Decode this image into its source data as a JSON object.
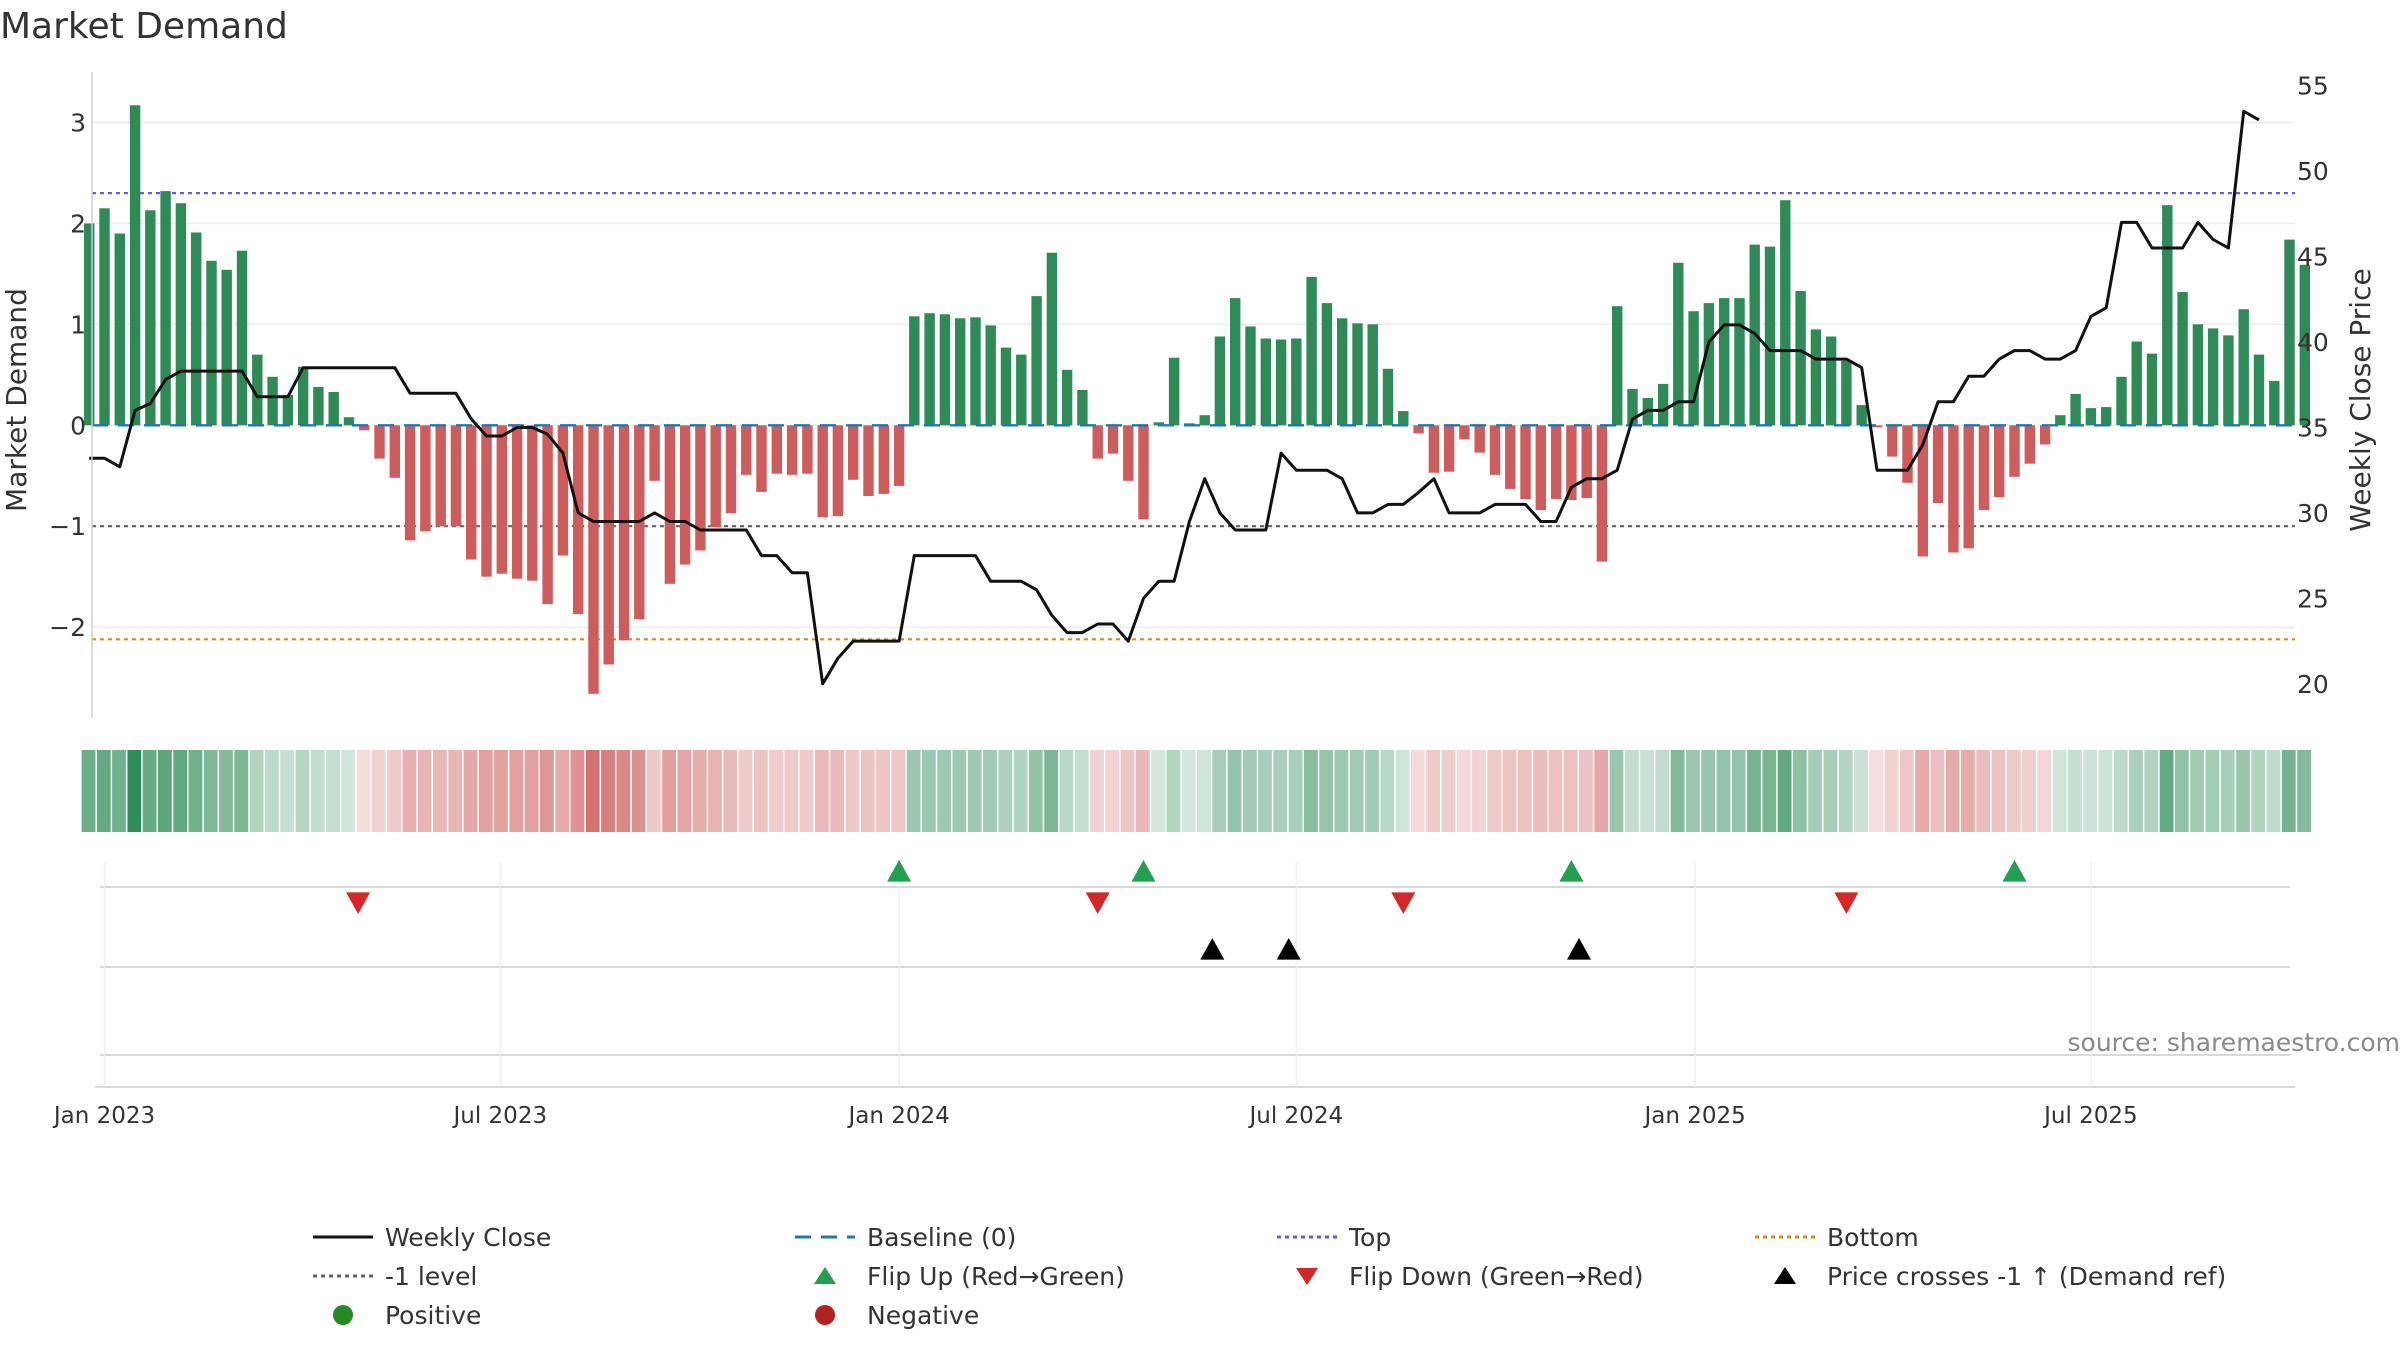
{
  "chart_data": {
    "type": "bar",
    "title": "Market Demand",
    "ylabel": "Market Demand",
    "y2label": "Weekly Close Price",
    "ylim": [
      -2.9,
      3.5
    ],
    "y2lim": [
      18.0,
      55.8
    ],
    "yticks": [
      3,
      2,
      1,
      0,
      -1,
      -2
    ],
    "yticklabels": [
      "3",
      "2",
      "1",
      "0",
      "−1",
      "−2"
    ],
    "y2ticks": [
      55,
      50,
      45,
      40,
      35,
      30,
      25,
      20
    ],
    "y2ticklabels": [
      "55",
      "50",
      "45",
      "40",
      "35",
      "30",
      "25",
      "20"
    ],
    "x_start": "2022-12-25",
    "xlim": [
      -2,
      146
    ],
    "xticks": [
      {
        "week": 1.0,
        "label": "Jan 2023"
      },
      {
        "week": 26.9,
        "label": "Jul 2023"
      },
      {
        "week": 53.0,
        "label": "Jan 2024"
      },
      {
        "week": 79.0,
        "label": "Jul 2024"
      },
      {
        "week": 105.1,
        "label": "Jan 2025"
      },
      {
        "week": 131.0,
        "label": "Jul 2025"
      }
    ],
    "levels": {
      "baseline": 0,
      "top": 2.3,
      "minus_one": -1,
      "bottom": -2.12
    },
    "demand": [
      2.0,
      2.15,
      1.9,
      3.17,
      2.13,
      2.32,
      2.2,
      1.91,
      1.63,
      1.54,
      1.73,
      0.7,
      0.48,
      0.3,
      0.58,
      0.38,
      0.33,
      0.08,
      -0.05,
      -0.33,
      -0.52,
      -1.14,
      -1.05,
      -1.0,
      -1.0,
      -1.33,
      -1.5,
      -1.47,
      -1.52,
      -1.54,
      -1.77,
      -1.29,
      -1.87,
      -2.66,
      -2.37,
      -2.13,
      -1.92,
      -0.55,
      -1.57,
      -1.38,
      -1.24,
      -1.01,
      -0.87,
      -0.49,
      -0.66,
      -0.48,
      -0.49,
      -0.48,
      -0.91,
      -0.9,
      -0.54,
      -0.7,
      -0.68,
      -0.6,
      1.08,
      1.11,
      1.1,
      1.06,
      1.07,
      0.99,
      0.77,
      0.7,
      1.28,
      1.71,
      0.55,
      0.35,
      -0.33,
      -0.28,
      -0.55,
      -0.93,
      0.03,
      0.67,
      0.02,
      0.1,
      0.88,
      1.26,
      0.98,
      0.86,
      0.85,
      0.86,
      1.47,
      1.21,
      1.06,
      1.01,
      1.0,
      0.56,
      0.14,
      -0.08,
      -0.47,
      -0.46,
      -0.14,
      -0.27,
      -0.49,
      -0.63,
      -0.73,
      -0.84,
      -0.73,
      -0.74,
      -0.72,
      -1.35,
      1.18,
      0.36,
      0.27,
      0.41,
      1.61,
      1.13,
      1.21,
      1.26,
      1.26,
      1.79,
      1.77,
      2.23,
      1.33,
      0.95,
      0.88,
      0.64,
      0.2,
      -0.02,
      -0.31,
      -0.57,
      -1.3,
      -0.77,
      -1.26,
      -1.22,
      -0.84,
      -0.71,
      -0.51,
      -0.38,
      -0.19,
      0.1,
      0.31,
      0.17,
      0.18,
      0.48,
      0.83,
      0.71,
      2.18,
      1.32,
      1.0,
      0.96,
      0.89,
      1.15,
      0.7,
      0.44,
      1.84,
      1.59
    ],
    "price": [
      33.2,
      33.2,
      32.7,
      36.0,
      36.4,
      37.8,
      38.3,
      38.3,
      38.3,
      38.3,
      38.3,
      36.8,
      36.8,
      36.8,
      38.5,
      38.5,
      38.5,
      38.5,
      38.5,
      38.5,
      38.5,
      37.0,
      37.0,
      37.0,
      37.0,
      35.5,
      34.5,
      34.5,
      35.0,
      35.0,
      34.6,
      33.5,
      30.0,
      29.5,
      29.5,
      29.5,
      29.5,
      30.0,
      29.5,
      29.5,
      29.0,
      29.0,
      29.0,
      29.0,
      27.5,
      27.5,
      26.5,
      26.5,
      20.0,
      21.5,
      22.5,
      22.5,
      22.5,
      22.5,
      27.5,
      27.5,
      27.5,
      27.5,
      27.5,
      26.0,
      26.0,
      26.0,
      25.5,
      24.0,
      23.0,
      23.0,
      23.5,
      23.5,
      22.5,
      25.0,
      26.0,
      26.0,
      29.5,
      32.0,
      30.0,
      29.0,
      29.0,
      29.0,
      33.5,
      32.5,
      32.5,
      32.5,
      32.0,
      30.0,
      30.0,
      30.5,
      30.5,
      31.2,
      32.0,
      30.0,
      30.0,
      30.0,
      30.5,
      30.5,
      30.5,
      29.5,
      29.5,
      31.5,
      32.0,
      32.0,
      32.5,
      35.5,
      36.0,
      36.0,
      36.5,
      36.5,
      40.0,
      41.0,
      41.0,
      40.5,
      39.5,
      39.5,
      39.5,
      39.0,
      39.0,
      39.0,
      38.5,
      32.5,
      32.5,
      32.5,
      34.0,
      36.5,
      36.5,
      38.0,
      38.0,
      39.0,
      39.5,
      39.5,
      39.0,
      39.0,
      39.5,
      41.5,
      42.0,
      47.0,
      47.0,
      45.5,
      45.5,
      45.5,
      47.0,
      46.0,
      45.5,
      53.5,
      53.0
    ],
    "flip_up_weeks": [
      53,
      69,
      97,
      126
    ],
    "flip_down_weeks": [
      17.6,
      66,
      86,
      115
    ],
    "price_cross_weeks": [
      73.5,
      78.5,
      97.5
    ],
    "colors": {
      "positive_bar": "#2e8b57",
      "negative_bar": "#cd5c5c",
      "price_line": "#111111",
      "baseline": "#1f77b4",
      "top": "#6b5cdb",
      "minus_one": "#666666",
      "bottom": "#e08a1e",
      "flip_up": "#20a050",
      "flip_down": "#d62728",
      "price_cross": "#000000",
      "legend_positive": "#228b22",
      "legend_negative": "#b22222"
    },
    "legend": [
      {
        "key": "close",
        "label": "Weekly Close"
      },
      {
        "key": "baseline",
        "label": "Baseline (0)"
      },
      {
        "key": "top",
        "label": "Top"
      },
      {
        "key": "bottom",
        "label": "Bottom"
      },
      {
        "key": "minus_one",
        "label": "-1 level"
      },
      {
        "key": "flip_up",
        "label": "Flip Up (Red→Green)"
      },
      {
        "key": "flip_down",
        "label": "Flip Down (Green→Red)"
      },
      {
        "key": "price_cross",
        "label": "Price crosses -1 ↑ (Demand ref)"
      },
      {
        "key": "positive",
        "label": "Positive"
      },
      {
        "key": "negative",
        "label": "Negative"
      }
    ]
  },
  "source": "source: sharemaestro.com"
}
